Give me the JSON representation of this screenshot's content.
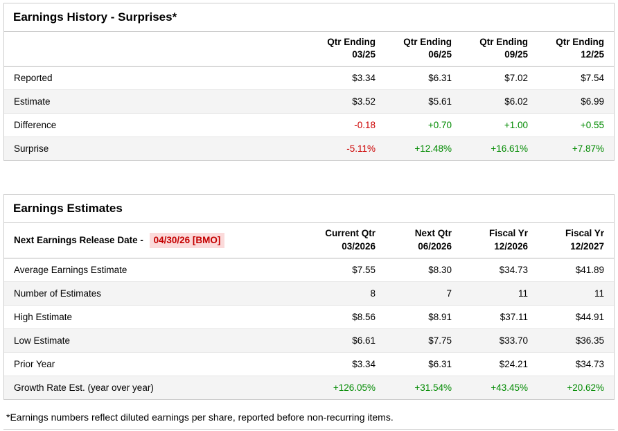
{
  "colors": {
    "positive": "#008a00",
    "negative": "#cc0000",
    "highlight_bg": "#fbdada",
    "highlight_text": "#c40000"
  },
  "surprises": {
    "title": "Earnings History - Surprises*",
    "columns": [
      "Qtr Ending\n03/25",
      "Qtr Ending\n06/25",
      "Qtr Ending\n09/25",
      "Qtr Ending\n12/25"
    ],
    "rows": [
      {
        "label": "Reported",
        "values": [
          "$3.34",
          "$6.31",
          "$7.02",
          "$7.54"
        ]
      },
      {
        "label": "Estimate",
        "values": [
          "$3.52",
          "$5.61",
          "$6.02",
          "$6.99"
        ]
      },
      {
        "label": "Difference",
        "values": [
          "-0.18",
          "+0.70",
          "+1.00",
          "+0.55"
        ]
      },
      {
        "label": "Surprise",
        "values": [
          "-5.11%",
          "+12.48%",
          "+16.61%",
          "+7.87%"
        ]
      }
    ]
  },
  "estimates": {
    "title": "Earnings Estimates",
    "release_label": "Next Earnings Release Date -",
    "release_date": "04/30/26 [BMO]",
    "columns": [
      "Current Qtr\n03/2026",
      "Next Qtr\n06/2026",
      "Fiscal Yr\n12/2026",
      "Fiscal Yr\n12/2027"
    ],
    "rows": [
      {
        "label": "Average Earnings Estimate",
        "values": [
          "$7.55",
          "$8.30",
          "$34.73",
          "$41.89"
        ]
      },
      {
        "label": "Number of Estimates",
        "values": [
          "8",
          "7",
          "11",
          "11"
        ]
      },
      {
        "label": "High Estimate",
        "values": [
          "$8.56",
          "$8.91",
          "$37.11",
          "$44.91"
        ]
      },
      {
        "label": "Low Estimate",
        "values": [
          "$6.61",
          "$7.75",
          "$33.70",
          "$36.35"
        ]
      },
      {
        "label": "Prior Year",
        "values": [
          "$3.34",
          "$6.31",
          "$24.21",
          "$34.73"
        ]
      },
      {
        "label": "Growth Rate Est. (year over year)",
        "values": [
          "+126.05%",
          "+31.54%",
          "+43.45%",
          "+20.62%"
        ]
      }
    ]
  },
  "footnote": "*Earnings numbers reflect diluted earnings per share, reported before non-recurring items."
}
